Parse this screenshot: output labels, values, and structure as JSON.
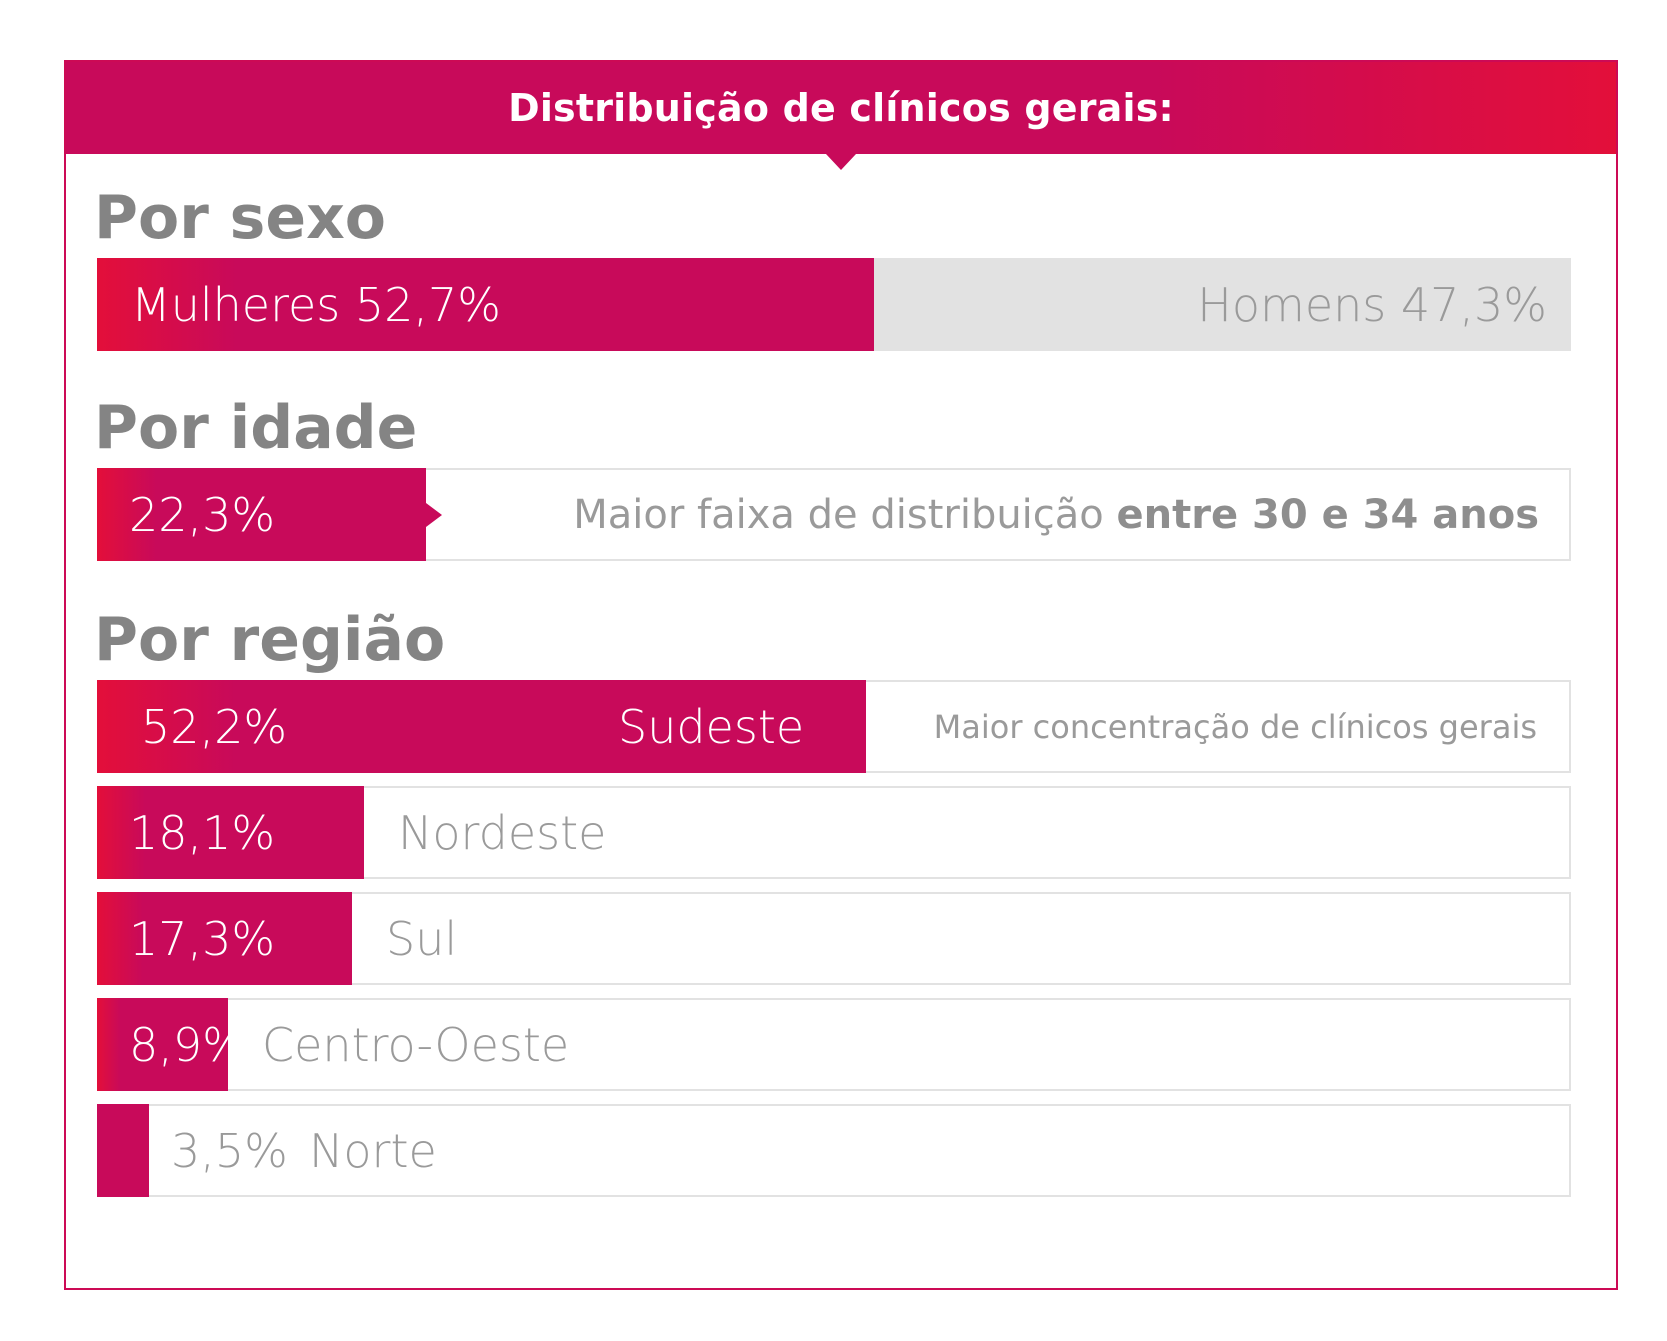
{
  "header": {
    "title": "Distribuição de clínicos gerais:"
  },
  "sections": {
    "sexo": {
      "title": "Por sexo"
    },
    "idade": {
      "title": "Por idade"
    },
    "regiao": {
      "title": "Por região"
    }
  },
  "colors": {
    "accent": "#c80a5a",
    "accent_light": "#e30f3a",
    "track_grey": "#e2e2e2",
    "text_grey": "#9a9a9a"
  },
  "chart_data": [
    {
      "type": "bar",
      "title": "Por sexo",
      "categories": [
        "Mulheres",
        "Homens"
      ],
      "values": [
        52.7,
        47.3
      ],
      "labels": [
        "Mulheres 52,7%",
        "Homens 47,3%"
      ],
      "ylim": [
        0,
        100
      ]
    },
    {
      "type": "bar",
      "title": "Por idade",
      "categories": [
        "entre 30 e 34 anos"
      ],
      "values": [
        22.3
      ],
      "labels": [
        "22,3%"
      ],
      "note_prefix": "Maior faixa de distribuição",
      "note_bold": "entre 30 e 34 anos",
      "ylim": [
        0,
        100
      ]
    },
    {
      "type": "bar",
      "title": "Por região",
      "categories": [
        "Sudeste",
        "Nordeste",
        "Sul",
        "Centro-Oeste",
        "Norte"
      ],
      "values": [
        52.2,
        18.1,
        17.3,
        8.9,
        3.5
      ],
      "labels": [
        "52,2%",
        "18,1%",
        "17,3%",
        "8,9%",
        "3,5%"
      ],
      "note": "Maior concentração de clínicos gerais",
      "ylim": [
        0,
        100
      ]
    }
  ]
}
